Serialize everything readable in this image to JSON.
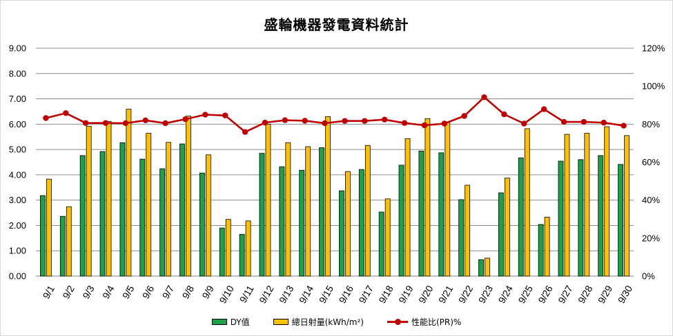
{
  "chart_data": {
    "type": "bar",
    "title": "盛輪機器發電資料統計",
    "categories": [
      "9/1",
      "9/2",
      "9/3",
      "9/4",
      "9/5",
      "9/6",
      "9/7",
      "9/8",
      "9/9",
      "9/10",
      "9/11",
      "9/12",
      "9/13",
      "9/14",
      "9/15",
      "9/16",
      "9/17",
      "9/18",
      "9/19",
      "9/20",
      "9/21",
      "9/22",
      "9/23",
      "9/24",
      "9/25",
      "9/26",
      "9/27",
      "9/28",
      "9/29",
      "9/30"
    ],
    "series": [
      {
        "name": "DY值",
        "type": "bar",
        "axis": "left",
        "color": "#1da048",
        "values": [
          3.18,
          2.36,
          4.76,
          4.92,
          5.27,
          4.62,
          4.24,
          5.22,
          4.07,
          1.9,
          1.65,
          4.85,
          4.32,
          4.18,
          5.07,
          3.37,
          4.21,
          2.53,
          4.38,
          4.94,
          4.87,
          3.02,
          0.65,
          3.29,
          4.67,
          2.04,
          4.54,
          4.6,
          4.76,
          4.41
        ]
      },
      {
        "name": "總日射量(kWh/m²)",
        "type": "bar",
        "axis": "left",
        "color": "#ffc000",
        "values": [
          3.83,
          2.74,
          5.92,
          6.11,
          6.59,
          5.64,
          5.28,
          6.32,
          4.79,
          2.24,
          2.18,
          6.0,
          5.27,
          5.11,
          6.3,
          4.13,
          5.16,
          3.05,
          5.43,
          6.22,
          6.07,
          3.59,
          0.71,
          3.87,
          5.82,
          2.33,
          5.6,
          5.64,
          5.9,
          5.55
        ]
      },
      {
        "name": "性能比(PR)%",
        "type": "line",
        "axis": "right",
        "color": "#c00000",
        "values": [
          83.2,
          85.8,
          80.6,
          80.6,
          80.5,
          82.0,
          80.5,
          82.6,
          85.0,
          84.6,
          75.9,
          80.8,
          82.1,
          81.8,
          80.5,
          81.7,
          81.7,
          82.4,
          80.6,
          79.4,
          80.3,
          84.3,
          94.2,
          85.2,
          80.3,
          87.9,
          81.2,
          81.2,
          80.8,
          79.2
        ]
      }
    ],
    "y_left": {
      "min": 0,
      "max": 9,
      "step": 1,
      "tick_labels": [
        "0.00",
        "1.00",
        "2.00",
        "3.00",
        "4.00",
        "5.00",
        "6.00",
        "7.00",
        "8.00",
        "9.00"
      ]
    },
    "y_right": {
      "min": 0,
      "max": 120,
      "step": 20,
      "tick_labels": [
        "0%",
        "20%",
        "40%",
        "60%",
        "80%",
        "100%",
        "120%"
      ]
    },
    "grid": true,
    "legend_position": "bottom"
  }
}
